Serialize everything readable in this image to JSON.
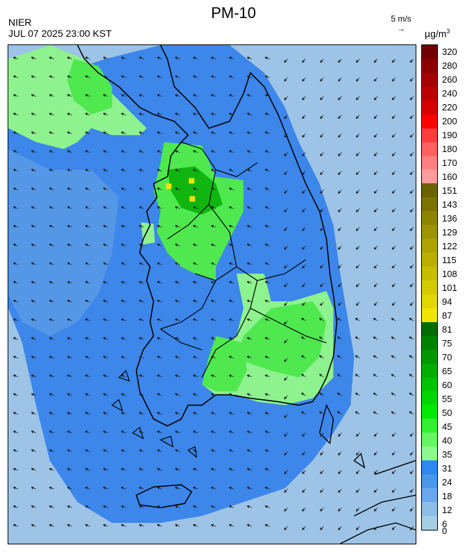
{
  "header": {
    "title": "PM-10",
    "org": "NIER",
    "datetime": "JUL 07 2025 23:00 KST",
    "wind_ref_label": "5 m/s",
    "wind_ref_arrow": "→",
    "unit_main": "µg/m",
    "unit_sup": "3"
  },
  "colorbar": {
    "ticks": [
      "320",
      "280",
      "260",
      "240",
      "220",
      "200",
      "190",
      "180",
      "170",
      "160",
      "151",
      "143",
      "136",
      "129",
      "122",
      "115",
      "108",
      "101",
      "94",
      "87",
      "81",
      "75",
      "70",
      "65",
      "60",
      "55",
      "50",
      "45",
      "40",
      "35",
      "31",
      "24",
      "18",
      "12",
      "6",
      "0"
    ],
    "colors": [
      "#6e0000",
      "#8a0000",
      "#a40000",
      "#bd0000",
      "#d60000",
      "#ff0000",
      "#ff3c3c",
      "#ff6060",
      "#ff8080",
      "#ff9c9c",
      "#6b6200",
      "#7d7300",
      "#8e8400",
      "#9e9400",
      "#ada200",
      "#bbb000",
      "#c8bd00",
      "#d5ca00",
      "#e2d800",
      "#f0e400",
      "#006d00",
      "#008100",
      "#009700",
      "#00ad00",
      "#00c200",
      "#00d600",
      "#00ea00",
      "#33f033",
      "#66f566",
      "#8efa8e",
      "#2e88f0",
      "#4b96ea",
      "#6aa8ec",
      "#8cbee6",
      "#a6cfe6"
    ]
  },
  "map": {
    "colors": {
      "sea_light": "#9dc3e6",
      "sea_mid": "#5b9be6",
      "land_blue": "#3d86ea",
      "green_light": "#8ef28e",
      "green": "#4fe84f",
      "green_dark": "#10b510",
      "yellow": "#f2e200",
      "border": "#000000"
    }
  }
}
